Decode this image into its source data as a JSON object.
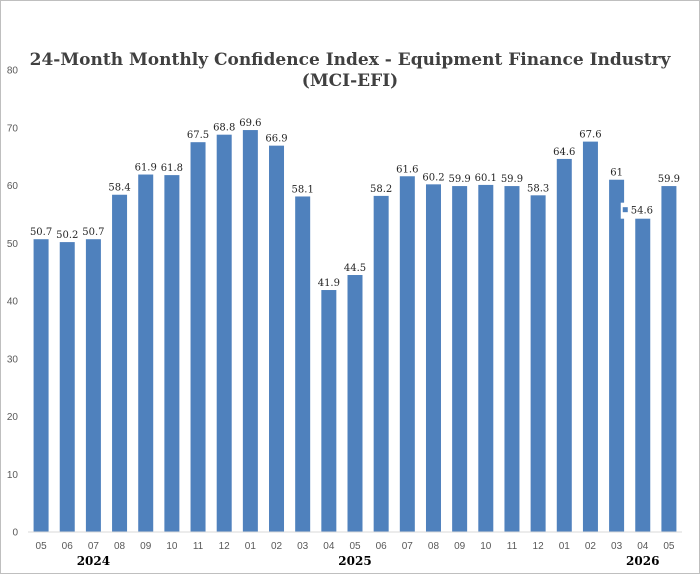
{
  "chart_data": {
    "type": "bar",
    "title_line1": "24-Month Monthly Confidence Index - Equipment Finance Industry",
    "title_line2": "(MCI-EFI)",
    "categories": [
      "05",
      "06",
      "07",
      "08",
      "09",
      "10",
      "11",
      "12",
      "01",
      "02",
      "03",
      "04",
      "05",
      "06",
      "07",
      "08",
      "09",
      "10",
      "11",
      "12",
      "01",
      "02",
      "03",
      "04",
      "05"
    ],
    "values": [
      50.7,
      50.2,
      50.7,
      58.4,
      61.9,
      61.8,
      67.5,
      68.8,
      69.6,
      66.9,
      58.1,
      41.9,
      44.5,
      58.2,
      61.6,
      60.2,
      59.9,
      60.1,
      59.9,
      58.3,
      64.6,
      67.6,
      61,
      54.6,
      59.9
    ],
    "data_labels": [
      "50.7",
      "50.2",
      "50.7",
      "58.4",
      "61.9",
      "61.8",
      "67.5",
      "68.8",
      "69.6",
      "66.9",
      "58.1",
      "41.9",
      "44.5",
      "58.2",
      "61.6",
      "60.2",
      "59.9",
      "60.1",
      "59.9",
      "58.3",
      "64.6",
      "67.6",
      "61",
      "54.6",
      "59.9"
    ],
    "year_labels": [
      {
        "text": "2024",
        "category_index": 2
      },
      {
        "text": "2025",
        "category_index": 12
      },
      {
        "text": "2026",
        "category_index": 23
      }
    ],
    "y_ticks": [
      0,
      10,
      20,
      30,
      40,
      50,
      60,
      70,
      80
    ],
    "ylim": [
      0,
      80
    ],
    "grid": false,
    "bar_color": "#4f81bd",
    "legend_marker_on_index": 23
  }
}
